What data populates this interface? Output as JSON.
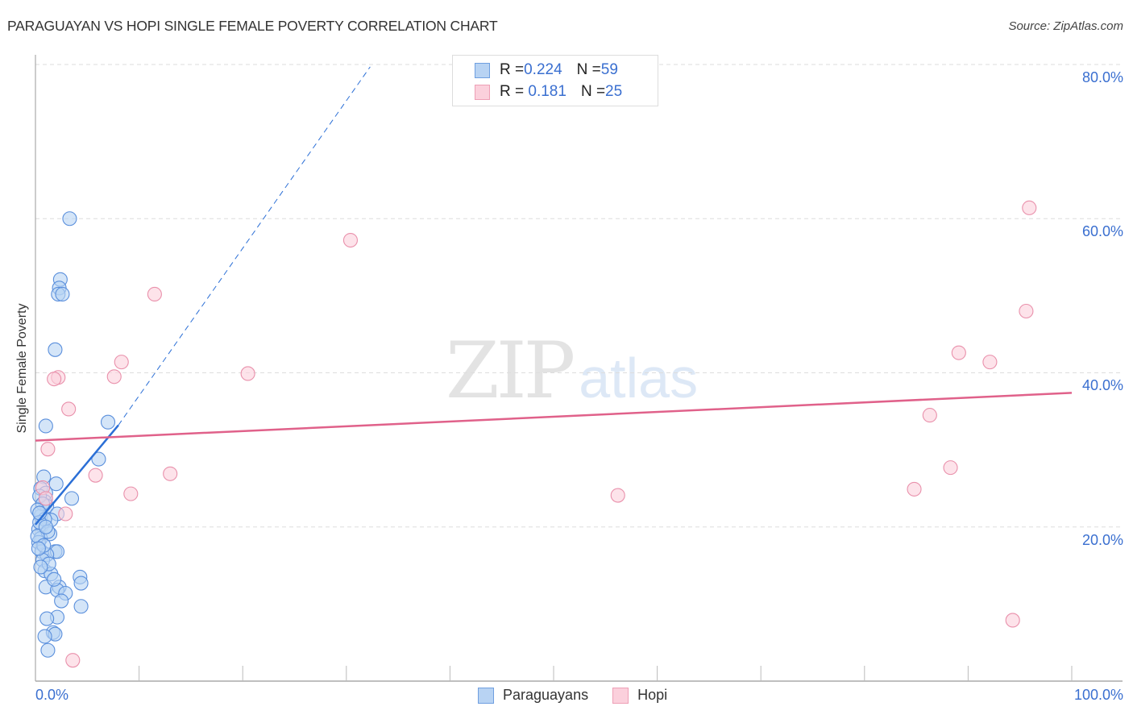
{
  "header": {
    "title": "PARAGUAYAN VS HOPI SINGLE FEMALE POVERTY CORRELATION CHART",
    "source": "Source: ZipAtlas.com"
  },
  "watermark": {
    "zip": "ZIP",
    "atlas": "atlas"
  },
  "axes": {
    "ylabel": "Single Female Poverty",
    "y_ticks": [
      "80.0%",
      "60.0%",
      "40.0%",
      "20.0%"
    ],
    "x_ticks": [
      "0.0%",
      "100.0%"
    ]
  },
  "legend_top": {
    "rows": [
      {
        "r_label": "R = ",
        "r_value": "0.224",
        "n_label": "N = ",
        "n_value": "59"
      },
      {
        "r_label": "R = ",
        "r_value": " 0.181",
        "n_label": "N = ",
        "n_value": "25"
      }
    ]
  },
  "legend_bottom": {
    "items": [
      {
        "label": "Paraguayans"
      },
      {
        "label": "Hopi"
      }
    ]
  },
  "colors": {
    "blue_fill": "#b8d3f3",
    "blue_stroke": "#5a8fdc",
    "blue_line": "#2b6fd6",
    "pink_fill": "#fbd0dc",
    "pink_stroke": "#e990ab",
    "pink_line": "#e0618a",
    "tick_text": "#3a6fd0",
    "grid": "#dddddd"
  },
  "chart_data": {
    "type": "scatter",
    "title": "PARAGUAYAN VS HOPI SINGLE FEMALE POVERTY CORRELATION CHART",
    "xlabel": "",
    "ylabel": "Single Female Poverty",
    "xlim": [
      0,
      100
    ],
    "ylim": [
      0,
      80
    ],
    "x_ticks": [
      "0.0%",
      "100.0%"
    ],
    "y_ticks": [
      "20.0%",
      "40.0%",
      "60.0%",
      "80.0%"
    ],
    "grid": true,
    "legend_position": "bottom",
    "series": [
      {
        "name": "Paraguayans",
        "R": 0.224,
        "N": 59,
        "trend": {
          "x0": 0,
          "y0": 20.3,
          "x1": 8.0,
          "y1": 33.2,
          "dashed_extension_to": [
            32.3,
            79.7
          ]
        },
        "points": [
          [
            3.3,
            60.0
          ],
          [
            2.4,
            52.1
          ],
          [
            2.3,
            51.0
          ],
          [
            2.2,
            50.2
          ],
          [
            2.6,
            50.2
          ],
          [
            1.9,
            43.0
          ],
          [
            1.0,
            33.1
          ],
          [
            7.0,
            33.6
          ],
          [
            6.1,
            28.8
          ],
          [
            0.8,
            26.5
          ],
          [
            2.0,
            25.6
          ],
          [
            0.5,
            25.0
          ],
          [
            1.0,
            24.4
          ],
          [
            3.5,
            23.7
          ],
          [
            0.9,
            23.3
          ],
          [
            1.1,
            22.7
          ],
          [
            0.5,
            21.4
          ],
          [
            2.1,
            21.7
          ],
          [
            1.5,
            20.9
          ],
          [
            0.6,
            20.2
          ],
          [
            0.3,
            19.7
          ],
          [
            1.4,
            19.1
          ],
          [
            0.5,
            18.5
          ],
          [
            0.3,
            18.0
          ],
          [
            0.6,
            16.8
          ],
          [
            1.9,
            16.8
          ],
          [
            2.1,
            16.8
          ],
          [
            1.1,
            16.4
          ],
          [
            0.7,
            15.7
          ],
          [
            4.3,
            13.5
          ],
          [
            4.4,
            12.7
          ],
          [
            0.9,
            14.3
          ],
          [
            1.5,
            13.9
          ],
          [
            2.3,
            12.2
          ],
          [
            1.0,
            12.2
          ],
          [
            2.1,
            11.8
          ],
          [
            2.9,
            11.4
          ],
          [
            2.5,
            10.4
          ],
          [
            4.4,
            9.7
          ],
          [
            2.1,
            8.3
          ],
          [
            1.1,
            8.1
          ],
          [
            1.7,
            6.3
          ],
          [
            1.9,
            6.1
          ],
          [
            0.9,
            5.8
          ],
          [
            1.2,
            4.0
          ],
          [
            0.4,
            24.0
          ],
          [
            0.7,
            23.0
          ],
          [
            0.2,
            22.2
          ],
          [
            0.9,
            21.0
          ],
          [
            0.4,
            20.6
          ],
          [
            1.2,
            19.4
          ],
          [
            0.2,
            18.8
          ],
          [
            0.8,
            17.6
          ],
          [
            0.3,
            17.2
          ],
          [
            1.3,
            15.2
          ],
          [
            0.5,
            14.8
          ],
          [
            1.8,
            13.2
          ],
          [
            0.4,
            21.8
          ],
          [
            1.0,
            20.0
          ]
        ]
      },
      {
        "name": "Hopi",
        "R": 0.181,
        "N": 25,
        "trend": {
          "x0": 0,
          "y0": 31.2,
          "x1": 100,
          "y1": 37.4
        },
        "points": [
          [
            95.9,
            61.4
          ],
          [
            30.4,
            57.2
          ],
          [
            11.5,
            50.2
          ],
          [
            95.6,
            48.0
          ],
          [
            89.1,
            42.6
          ],
          [
            92.1,
            41.4
          ],
          [
            8.3,
            41.4
          ],
          [
            2.2,
            39.4
          ],
          [
            1.8,
            39.2
          ],
          [
            7.6,
            39.5
          ],
          [
            20.5,
            39.9
          ],
          [
            86.3,
            34.5
          ],
          [
            3.2,
            35.3
          ],
          [
            1.2,
            30.1
          ],
          [
            88.3,
            27.7
          ],
          [
            5.8,
            26.7
          ],
          [
            13.0,
            26.9
          ],
          [
            84.8,
            24.9
          ],
          [
            9.2,
            24.3
          ],
          [
            56.2,
            24.1
          ],
          [
            0.7,
            25.1
          ],
          [
            1.0,
            23.7
          ],
          [
            2.9,
            21.7
          ],
          [
            94.3,
            7.9
          ],
          [
            3.6,
            2.7
          ]
        ]
      }
    ]
  }
}
